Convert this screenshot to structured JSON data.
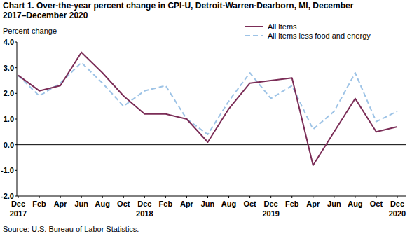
{
  "chart_data": {
    "type": "line",
    "title": "Chart 1. Over-the-year percent change in CPI-U, Detroit-Warren-Dearborn, MI, December 2017–December 2020",
    "y_label": "Percent change",
    "source": "Source: U.S. Bureau of Labor Statistics.",
    "categories": [
      "Dec\n2017",
      "Feb",
      "Apr",
      "Jun",
      "Aug",
      "Oct",
      "Dec\n2018",
      "Feb",
      "Apr",
      "Jun",
      "Aug",
      "Oct",
      "Dec\n2019",
      "Feb",
      "Apr",
      "Jun",
      "Aug",
      "Oct",
      "Dec\n2020"
    ],
    "series": [
      {
        "name": "All items",
        "color": "#7b2d57",
        "line_style": "solid",
        "values": [
          2.7,
          2.1,
          2.3,
          3.6,
          2.8,
          1.9,
          1.2,
          1.2,
          1.0,
          0.1,
          1.4,
          2.4,
          2.5,
          2.6,
          -0.8,
          0.5,
          1.8,
          0.5,
          0.7
        ]
      },
      {
        "name": "All items less food and energy",
        "color": "#9dc3e6",
        "line_style": "dashed",
        "values": [
          2.7,
          1.9,
          2.4,
          3.2,
          2.4,
          1.5,
          2.1,
          2.3,
          1.0,
          0.4,
          1.7,
          2.8,
          1.8,
          2.3,
          0.6,
          1.3,
          2.8,
          0.9,
          1.3
        ]
      }
    ],
    "ylim": [
      -2,
      4
    ],
    "yticks": [
      {
        "value": 4,
        "label": "4.0"
      },
      {
        "value": 3,
        "label": "3.0"
      },
      {
        "value": 2,
        "label": "2.0"
      },
      {
        "value": 1,
        "label": "1.0"
      },
      {
        "value": 0,
        "label": "0.0"
      },
      {
        "value": -1,
        "label": "-1.0"
      },
      {
        "value": -2,
        "label": "-2.0"
      }
    ],
    "grid": false,
    "legend": "top-right"
  }
}
